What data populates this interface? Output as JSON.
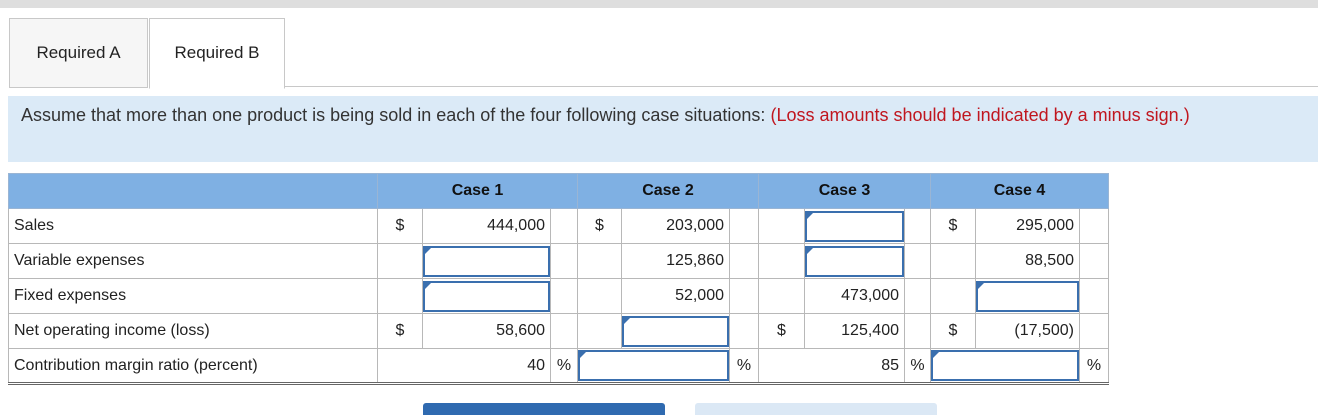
{
  "tabs": [
    {
      "label": "Required A",
      "active": false
    },
    {
      "label": "Required B",
      "active": true
    }
  ],
  "instructions": {
    "text": "Assume that more than one product is being sold in each of the four following case situations:",
    "note": "(Loss amounts should be indicated by a minus sign.)"
  },
  "table": {
    "headers": [
      "Case 1",
      "Case 2",
      "Case 3",
      "Case 4"
    ],
    "rows": [
      {
        "label": "Sales",
        "cells": [
          {
            "dollar": "$",
            "value": "444,000"
          },
          {
            "dollar": "$",
            "value": "203,000"
          },
          {
            "dollar": "",
            "input": true
          },
          {
            "dollar": "$",
            "value": "295,000"
          }
        ]
      },
      {
        "label": "Variable expenses",
        "cells": [
          {
            "dollar": "",
            "input": true
          },
          {
            "dollar": "",
            "value": "125,860"
          },
          {
            "dollar": "",
            "input": true
          },
          {
            "dollar": "",
            "value": "88,500"
          }
        ]
      },
      {
        "label": "Fixed expenses",
        "cells": [
          {
            "dollar": "",
            "input": true
          },
          {
            "dollar": "",
            "value": "52,000"
          },
          {
            "dollar": "",
            "value": "473,000"
          },
          {
            "dollar": "",
            "input": true
          }
        ]
      },
      {
        "label": "Net operating income (loss)",
        "cells": [
          {
            "dollar": "$",
            "value": "58,600"
          },
          {
            "dollar": "",
            "input": true
          },
          {
            "dollar": "$",
            "value": "125,400"
          },
          {
            "dollar": "$",
            "value": "(17,500)"
          }
        ]
      },
      {
        "label": "Contribution margin ratio (percent)",
        "cells": [
          {
            "value": "40",
            "pct": "%"
          },
          {
            "input": true,
            "pct": "%"
          },
          {
            "value": "85",
            "pct": "%"
          },
          {
            "input": true,
            "pct": "%"
          }
        ]
      }
    ]
  }
}
